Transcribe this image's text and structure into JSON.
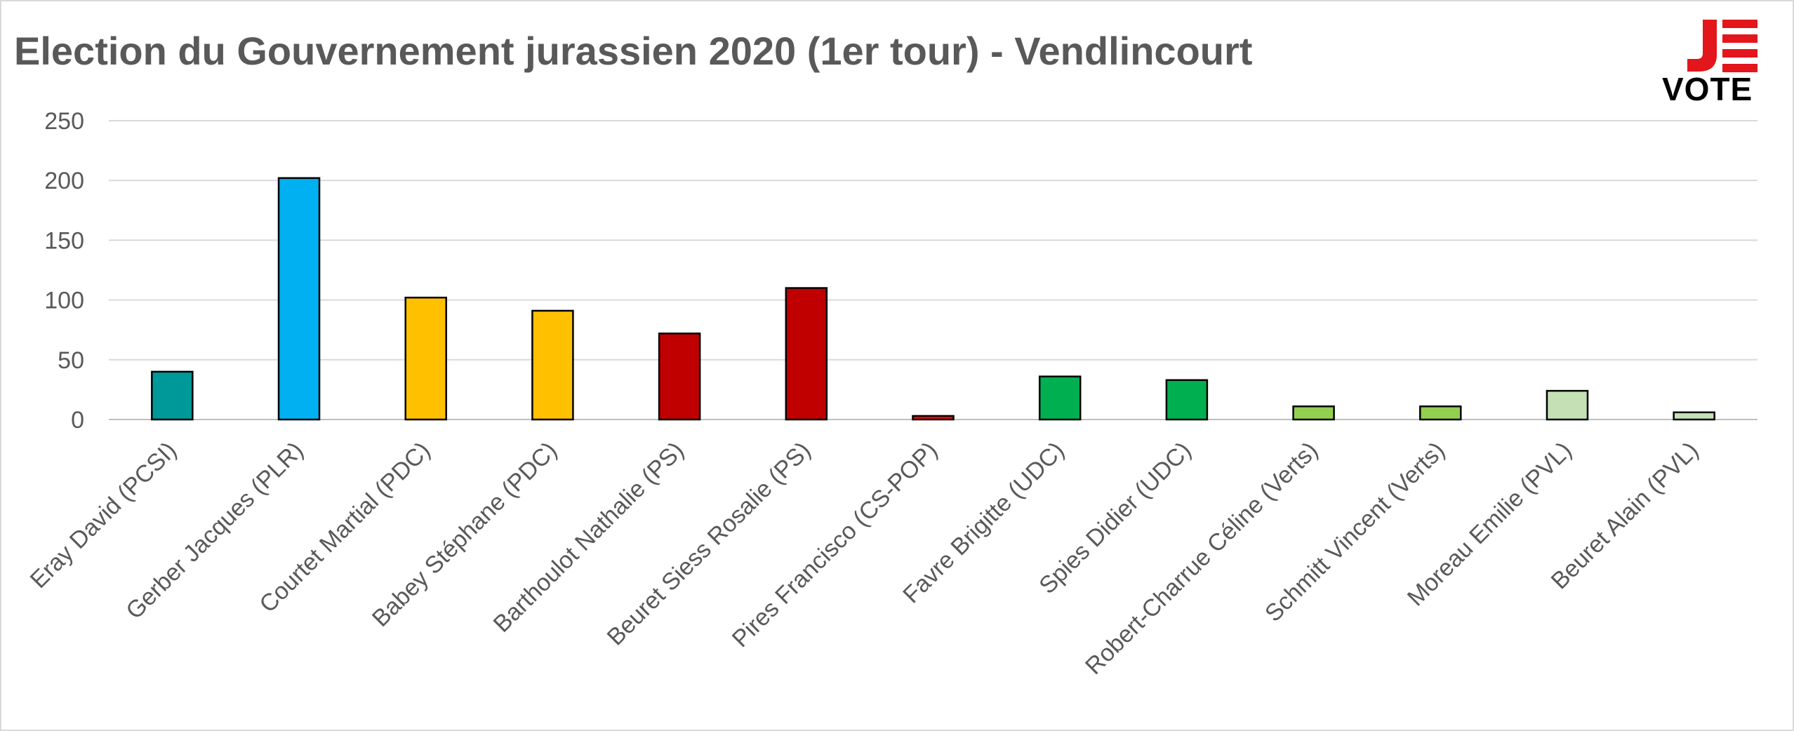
{
  "title": "Election du Gouvernement jurassien 2020 (1er tour) - Vendlincourt",
  "logo": {
    "text_top": "J",
    "text_bottom": "VOTE",
    "colors": {
      "red": "#e3161c",
      "black": "#000000"
    }
  },
  "chart_data": {
    "type": "bar",
    "title": "Election du Gouvernement jurassien 2020 (1er tour) - Vendlincourt",
    "categories": [
      "Eray David (PCSI)",
      "Gerber Jacques (PLR)",
      "Courtet Martial (PDC)",
      "Babey Stéphane (PDC)",
      "Barthoulot Nathalie (PS)",
      "Beuret Siess Rosalie (PS)",
      "Pires Francisco (CS-POP)",
      "Favre Brigitte (UDC)",
      "Spies Didier (UDC)",
      "Robert-Charrue Céline (Verts)",
      "Schmitt Vincent (Verts)",
      "Moreau Emilie (PVL)",
      "Beuret Alain (PVL)"
    ],
    "values": [
      40,
      202,
      102,
      91,
      72,
      110,
      3,
      36,
      33,
      11,
      11,
      24,
      6
    ],
    "colors": [
      "#009999",
      "#00b0f0",
      "#ffc000",
      "#ffc000",
      "#c00000",
      "#c00000",
      "#ff0000",
      "#00b050",
      "#00b050",
      "#92d050",
      "#92d050",
      "#c5e0b4",
      "#c5e0b4"
    ],
    "ylim": [
      0,
      250
    ],
    "yticks": [
      0,
      50,
      100,
      150,
      200,
      250
    ],
    "xlabel": "",
    "ylabel": "",
    "grid": true,
    "legend": "none"
  }
}
